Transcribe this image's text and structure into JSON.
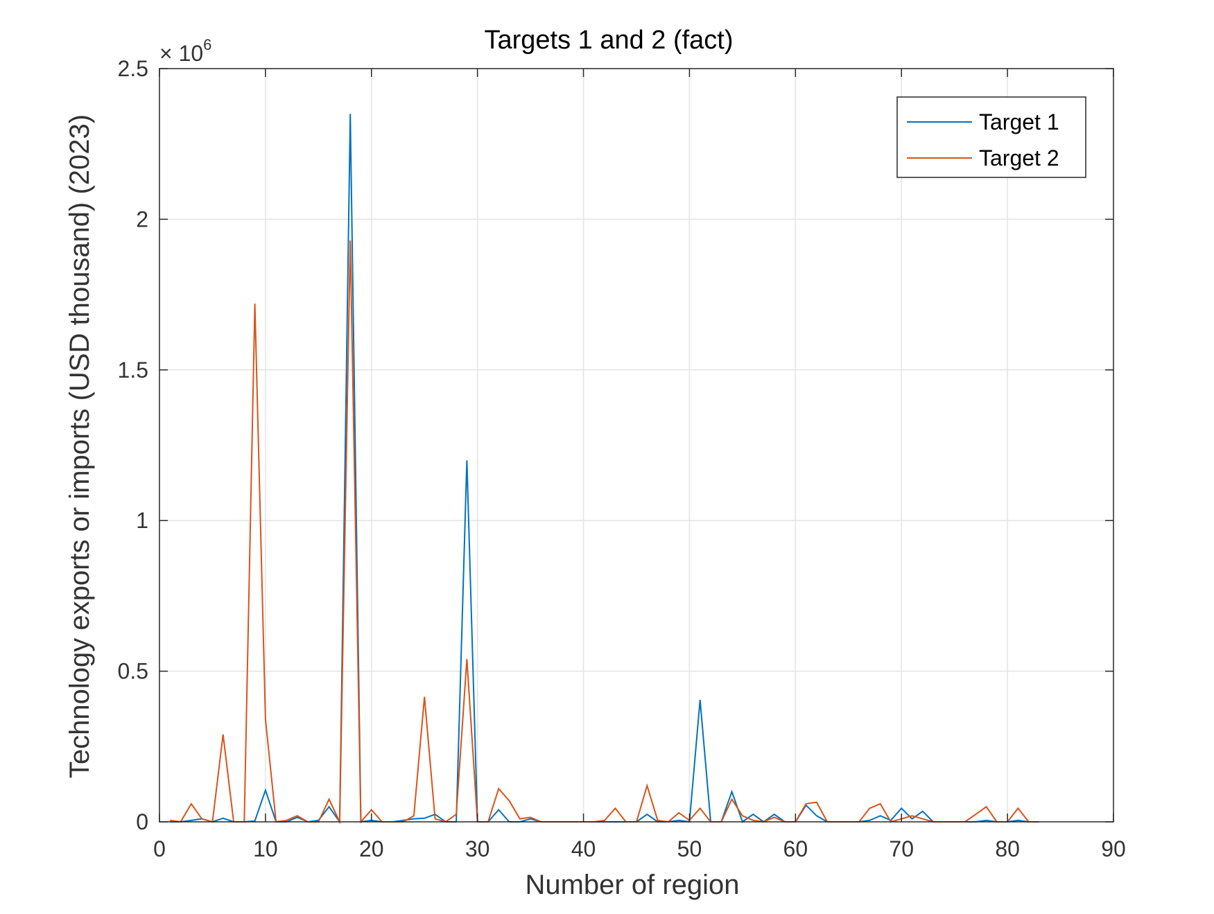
{
  "chart_data": {
    "type": "line",
    "title": "Targets 1 and 2 (fact)",
    "xlabel": "Number of region",
    "ylabel": "Technology exports or imports (USD thousand) (2023)",
    "y_exponent_label": "× 10",
    "y_exponent_power": "6",
    "xlim": [
      0,
      90
    ],
    "ylim": [
      0,
      2.5
    ],
    "y_scale_factor": 1000000,
    "x_ticks": [
      0,
      10,
      20,
      30,
      40,
      50,
      60,
      70,
      80,
      90
    ],
    "x_tick_labels": [
      "0",
      "10",
      "20",
      "30",
      "40",
      "50",
      "60",
      "70",
      "80",
      "90"
    ],
    "y_ticks": [
      0,
      0.5,
      1,
      1.5,
      2,
      2.5
    ],
    "y_tick_labels": [
      "0",
      "0.5",
      "1",
      "1.5",
      "2",
      "2.5"
    ],
    "grid": true,
    "legend_position": "top-right",
    "x": [
      1,
      2,
      3,
      4,
      5,
      6,
      7,
      8,
      9,
      10,
      11,
      12,
      13,
      14,
      15,
      16,
      17,
      18,
      19,
      20,
      21,
      22,
      23,
      24,
      25,
      26,
      27,
      28,
      29,
      30,
      31,
      32,
      33,
      34,
      35,
      36,
      37,
      38,
      39,
      40,
      41,
      42,
      43,
      44,
      45,
      46,
      47,
      48,
      49,
      50,
      51,
      52,
      53,
      54,
      55,
      56,
      57,
      58,
      59,
      60,
      61,
      62,
      63,
      64,
      65,
      66,
      67,
      68,
      69,
      70,
      71,
      72,
      73,
      74,
      75,
      76,
      77,
      78,
      79,
      80,
      81,
      82,
      83
    ],
    "series": [
      {
        "name": "Target 1",
        "color": "#0072BD",
        "values": [
          0,
          0,
          0.005,
          0.01,
          0,
          0.012,
          0,
          0,
          0.003,
          0.105,
          0,
          0,
          0.015,
          0,
          0.005,
          0.05,
          0,
          2.35,
          0,
          0.005,
          0,
          0,
          0.005,
          0.01,
          0.012,
          0.025,
          0,
          0,
          1.2,
          0,
          0,
          0.04,
          0,
          0,
          0.01,
          0,
          0,
          0,
          0,
          0,
          0,
          0,
          0,
          0,
          0,
          0.025,
          0,
          0,
          0.005,
          0,
          0.405,
          0,
          0,
          0.1,
          0,
          0.025,
          0,
          0.025,
          0,
          0,
          0.055,
          0.02,
          0,
          0,
          0,
          0,
          0.005,
          0.02,
          0.005,
          0.045,
          0.01,
          0.035,
          0,
          0,
          0,
          0,
          0,
          0.005,
          0,
          0,
          0.005,
          0,
          0
        ]
      },
      {
        "name": "Target 2",
        "color": "#D95319",
        "values": [
          0.005,
          0,
          0.06,
          0.01,
          0,
          0.29,
          0,
          0,
          1.72,
          0.34,
          0,
          0.005,
          0.02,
          0,
          0,
          0.075,
          0,
          1.93,
          0,
          0.04,
          0,
          0,
          0,
          0.02,
          0.415,
          0.01,
          0,
          0.025,
          0.54,
          0,
          0,
          0.11,
          0.07,
          0.01,
          0.015,
          0,
          0,
          0,
          0,
          0,
          0,
          0.005,
          0.045,
          0,
          0,
          0.12,
          0.005,
          0,
          0.03,
          0.005,
          0.045,
          0,
          0,
          0.075,
          0.02,
          0.005,
          0,
          0.015,
          0,
          0,
          0.06,
          0.065,
          0,
          0,
          0,
          0,
          0.045,
          0.06,
          0,
          0.01,
          0.02,
          0.01,
          0,
          0,
          0,
          0,
          0.025,
          0.05,
          0,
          0,
          0.045,
          0,
          0
        ]
      }
    ]
  }
}
